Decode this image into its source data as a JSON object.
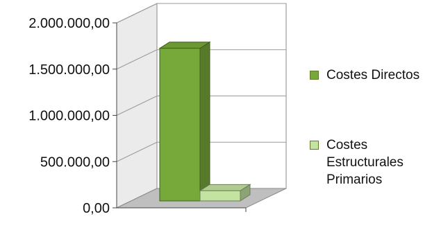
{
  "chart_data": {
    "type": "bar",
    "categories": [
      ""
    ],
    "series": [
      {
        "name": "Costes Directos",
        "values": [
          1650000
        ],
        "color": "#77a93a"
      },
      {
        "name": "Costes Estructurales Primarios",
        "values": [
          110000
        ],
        "color": "#c3e3a1"
      }
    ],
    "yticks": [
      "0,00",
      "500.000,00",
      "1.000.000,00",
      "1.500.000,00",
      "2.000.000,00"
    ],
    "ylim": [
      0,
      2000000
    ],
    "grid": true,
    "legend_position": "right",
    "legend": [
      {
        "label": "Costes Directos",
        "color": "#77a93a"
      },
      {
        "label": "Costes\nEstructurales\nPrimarios",
        "color": "#c3e3a1"
      }
    ]
  }
}
